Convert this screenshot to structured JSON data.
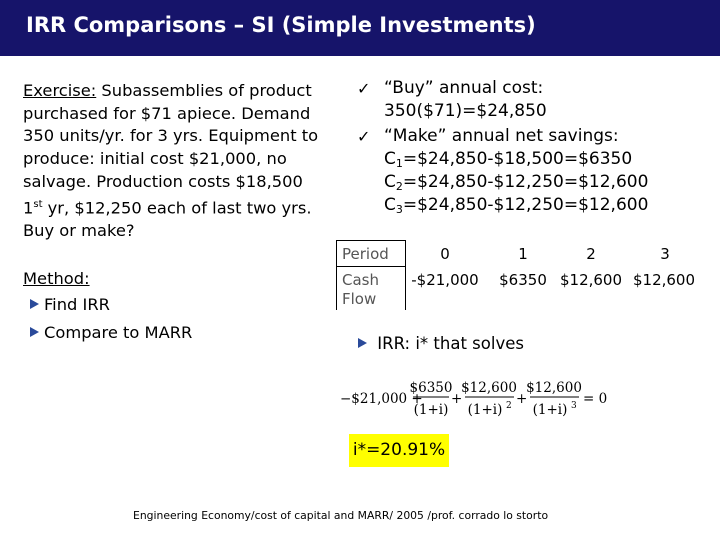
{
  "title": "IRR Comparisons – SI  (Simple Investments)",
  "exercise": {
    "label": "Exercise:",
    "line1_rest": " Subassemblies of product",
    "lines": [
      "purchased for $71 apiece. Demand",
      "350 units/yr. for 3 yrs. Equipment to",
      "produce: initial cost $21,000, no",
      "salvage. Production costs $18,500"
    ],
    "line6_a": "1",
    "line6_sup": "st",
    "line6_b": " yr, $12,250 each of last two yrs.",
    "line7": "Buy or make?"
  },
  "method": {
    "label": "Method:",
    "items": [
      "Find IRR",
      "Compare to MARR"
    ]
  },
  "right": {
    "buy_label": "“Buy” annual cost:",
    "buy_value": "350($71)=$24,850",
    "make_label": "“Make” annual net savings:",
    "c_prefix": "C",
    "c_rows": [
      {
        "sub": "1",
        "expr": "=$24,850-$18,500=$6350"
      },
      {
        "sub": "2",
        "expr": "=$24,850-$12,250=$12,600"
      },
      {
        "sub": "3",
        "expr": "=$24,850-$12,250=$12,600"
      }
    ]
  },
  "table": {
    "period_label": "Period",
    "cash_label_1": "Cash",
    "cash_label_2": "Flow",
    "periods": [
      "0",
      "1",
      "2",
      "3"
    ],
    "flows": [
      "-$21,000",
      "$6350",
      "$12,600",
      "$12,600"
    ]
  },
  "irr_text": "IRR: i* that solves",
  "equation": {
    "initial": "−$21,000 +",
    "n1": "$6350",
    "d1": "(1+i)",
    "n2": "$12,600",
    "d2": "(1+i)",
    "e2": "2",
    "n3": "$12,600",
    "d3": "(1+i)",
    "e3": "3",
    "plus": "+",
    "rhs": "= 0"
  },
  "result": "i*=20.91%",
  "footer": "Engineering Economy/cost of capital and MARR/ 2005 /prof. corrado lo storto",
  "colors": {
    "title_bar": "#16146a",
    "highlight": "#ffff00",
    "bullet": "#2a4a9a"
  }
}
